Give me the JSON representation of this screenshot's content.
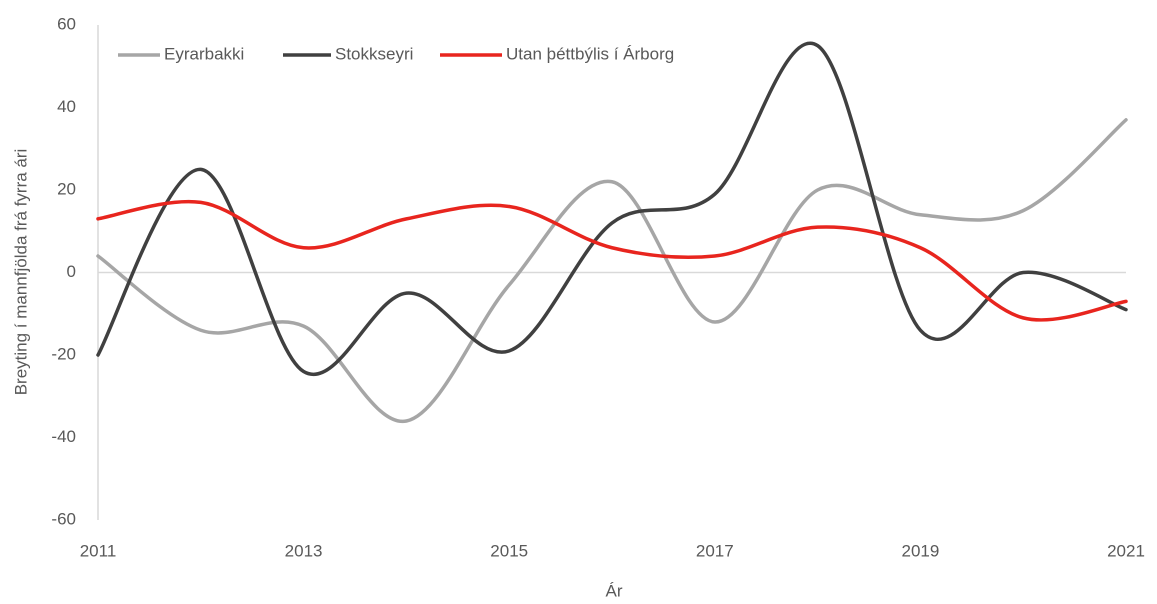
{
  "chart_data": {
    "type": "line",
    "x": [
      2011,
      2012,
      2013,
      2014,
      2015,
      2016,
      2017,
      2018,
      2019,
      2020,
      2021
    ],
    "series": [
      {
        "name": "Eyrarbakki",
        "color": "#a6a6a6",
        "values": [
          4,
          -14,
          -13,
          -36,
          -3,
          22,
          -12,
          20,
          14,
          15,
          37
        ]
      },
      {
        "name": "Stokkseyri",
        "color": "#404040",
        "values": [
          -20,
          25,
          -24,
          -5,
          -19,
          12,
          19,
          55,
          -14,
          0,
          -9
        ]
      },
      {
        "name": "Utan þéttbýlis í Árborg",
        "color": "#e8251e",
        "values": [
          13,
          17,
          6,
          13,
          16,
          6,
          4,
          11,
          6,
          -11,
          -7
        ]
      }
    ],
    "xlabel": "Ár",
    "ylabel": "Breyting í mannfjölda frá fyrra ári",
    "xlim": [
      2011,
      2021
    ],
    "xticks": [
      2011,
      2013,
      2015,
      2017,
      2019,
      2021
    ],
    "ylim": [
      -60,
      60
    ],
    "yticks": [
      -60,
      -40,
      -20,
      0,
      20,
      40,
      60
    ],
    "smooth": true,
    "legend": "top"
  }
}
